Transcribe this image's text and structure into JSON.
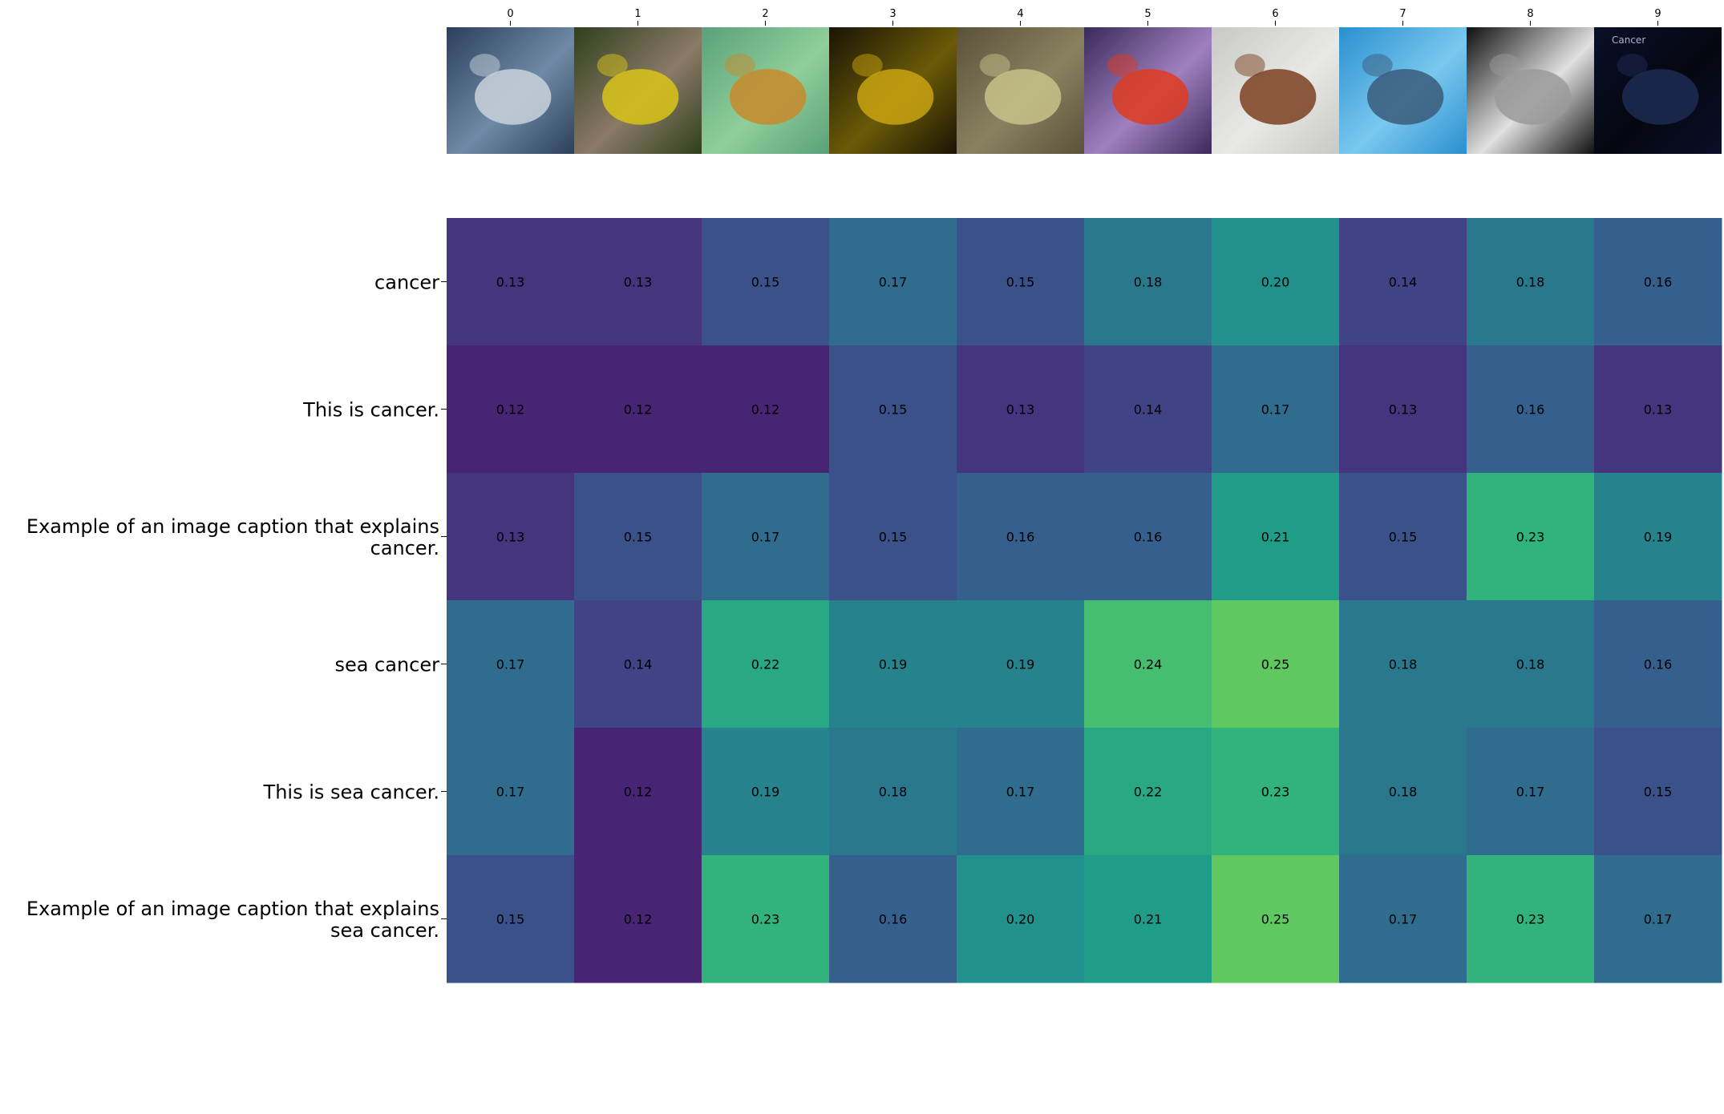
{
  "chart_data": {
    "type": "heatmap",
    "title": "",
    "xlabel": "",
    "ylabel": "",
    "columns": [
      "0",
      "1",
      "2",
      "3",
      "4",
      "5",
      "6",
      "7",
      "8",
      "9"
    ],
    "rows": [
      "cancer",
      "This is cancer.",
      "Example of an image caption that explains cancer.",
      "sea cancer",
      "This is sea cancer.",
      "Example of an image caption that explains sea cancer."
    ],
    "row_label_lines": [
      [
        "cancer"
      ],
      [
        "This is cancer."
      ],
      [
        "Example of an image caption that explains",
        "cancer."
      ],
      [
        "sea cancer"
      ],
      [
        "This is sea cancer."
      ],
      [
        "Example of an image caption that explains",
        "sea cancer."
      ]
    ],
    "values": [
      [
        0.13,
        0.13,
        0.15,
        0.17,
        0.15,
        0.18,
        0.2,
        0.14,
        0.18,
        0.16
      ],
      [
        0.12,
        0.12,
        0.12,
        0.15,
        0.13,
        0.14,
        0.17,
        0.13,
        0.16,
        0.13
      ],
      [
        0.13,
        0.15,
        0.17,
        0.15,
        0.16,
        0.16,
        0.21,
        0.15,
        0.23,
        0.19
      ],
      [
        0.17,
        0.14,
        0.22,
        0.19,
        0.19,
        0.24,
        0.25,
        0.18,
        0.18,
        0.16
      ],
      [
        0.17,
        0.12,
        0.19,
        0.18,
        0.17,
        0.22,
        0.23,
        0.18,
        0.17,
        0.15
      ],
      [
        0.15,
        0.12,
        0.23,
        0.16,
        0.2,
        0.21,
        0.25,
        0.17,
        0.23,
        0.17
      ]
    ],
    "colormap": "viridis",
    "color_range": [
      0.1,
      0.3
    ],
    "grid": false,
    "legend": "none",
    "thumbnails": [
      {
        "name": "earth-from-space-image",
        "colors": [
          "#2b3f5c",
          "#c9d3dc",
          "#6f8aa6"
        ]
      },
      {
        "name": "yellow-flowers-image",
        "colors": [
          "#2f3f1e",
          "#d9c418",
          "#8a7a66"
        ]
      },
      {
        "name": "orange-coral-image",
        "colors": [
          "#5aa07a",
          "#c98a2a",
          "#8fcf9a"
        ]
      },
      {
        "name": "yellow-moray-eel-image",
        "colors": [
          "#1a1405",
          "#c9a310",
          "#6b5a08"
        ]
      },
      {
        "name": "spotted-fish-image",
        "colors": [
          "#5a513a",
          "#c8c28a",
          "#8a8160"
        ]
      },
      {
        "name": "red-lobster-image",
        "colors": [
          "#3a2a5a",
          "#e03a20",
          "#a080c0"
        ]
      },
      {
        "name": "crab-image",
        "colors": [
          "#c8c8c4",
          "#7a3f20",
          "#e8e8e4"
        ]
      },
      {
        "name": "dolphins-image",
        "colors": [
          "#2a8fd0",
          "#3a5a7a",
          "#7ac8ef"
        ]
      },
      {
        "name": "ct-scan-image",
        "colors": [
          "#101010",
          "#9a9a9a",
          "#e0e0e0"
        ]
      },
      {
        "name": "cancer-constellation-image",
        "colors": [
          "#0a0f2a",
          "#1f2a55",
          "#05070f"
        ]
      }
    ],
    "thumbnail_caption": "Cancer"
  }
}
